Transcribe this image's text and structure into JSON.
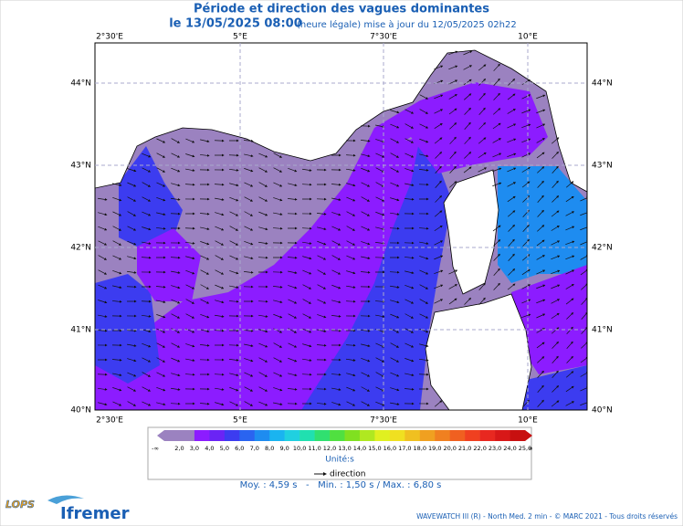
{
  "header": {
    "title": "Période et direction des vagues dominantes",
    "date": "le 13/05/2025 08:00",
    "note": "(heure légale) mise à jour du 12/05/2025 02h22"
  },
  "map": {
    "lon_labels": [
      "2°30'E",
      "5°E",
      "7°30'E",
      "10°E"
    ],
    "lat_labels": [
      "44°N",
      "43°N",
      "42°N",
      "41°N",
      "40°N"
    ]
  },
  "colorbar": {
    "labels": [
      "-∞",
      "2,0",
      "3,0",
      "4,0",
      "5,0",
      "6,0",
      "7,0",
      "8,0",
      "9,0",
      "10,0",
      "11,0",
      "12,0",
      "13,0",
      "14,0",
      "15,0",
      "16,0",
      "17,0",
      "18,0",
      "19,0",
      "20,0",
      "21,0",
      "22,0",
      "23,0",
      "24,0",
      "25,0",
      "∞"
    ],
    "colors": [
      "#9b82c0",
      "#9b82c0",
      "#8c1cff",
      "#6a24f5",
      "#3c3cf0",
      "#2a64f0",
      "#1e8cf0",
      "#1ab4f0",
      "#20d0e0",
      "#20e0b0",
      "#30e070",
      "#50e040",
      "#80e020",
      "#b0e820",
      "#e0f020",
      "#f0e020",
      "#f0c020",
      "#f0a020",
      "#f08020",
      "#f06020",
      "#f04020",
      "#e82820",
      "#d81818",
      "#c81010"
    ],
    "unit": "Unité:s",
    "direction": "direction"
  },
  "stats": "Moy. : 4,59 s   -   Min. : 1,50 s / Max. : 6,80 s",
  "footer": {
    "credit": "WAVEWATCH III (R) - North Med. 2 min - © MARC 2021 - Tous droits réservés",
    "logo1": "LOPS",
    "logo2": "Ifremer"
  }
}
